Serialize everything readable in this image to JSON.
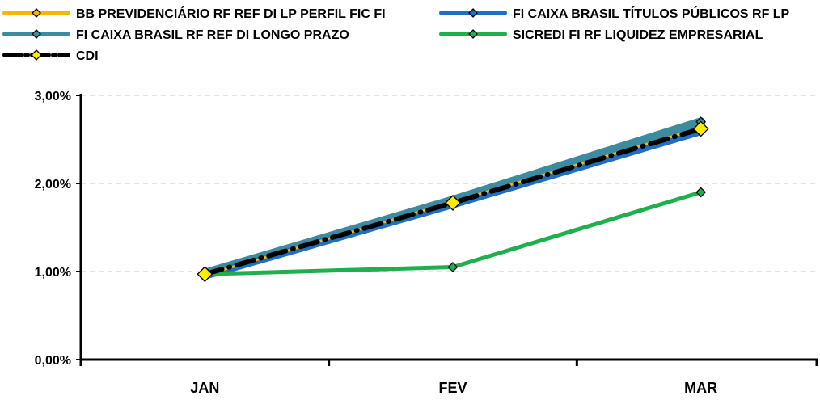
{
  "chart_data": {
    "type": "line",
    "categories": [
      "JAN",
      "FEV",
      "MAR"
    ],
    "ylim": [
      0,
      3
    ],
    "y_ticks": [
      "0,00%",
      "1,00%",
      "2,00%",
      "3,00%"
    ],
    "y_tick_values": [
      0,
      1,
      2,
      3
    ],
    "grid": "horizontal dashed",
    "legend_position": "top",
    "series": [
      {
        "name": "BB PREVIDENCIÁRIO RF REF DI LP PERFIL FIC FI",
        "values": [
          0.96,
          1.79,
          2.63
        ],
        "color": "#f5b800",
        "marker_color": "#f5b800"
      },
      {
        "name": "FI CAIXA BRASIL TÍTULOS PÚBLICOS RF LP",
        "values": [
          0.95,
          1.76,
          2.59
        ],
        "color": "#1f6fc3",
        "marker_color": "#1f6fc3"
      },
      {
        "name": "FI CAIXA BRASIL RF REF DI LONGO PRAZO",
        "values": [
          0.98,
          1.81,
          2.7
        ],
        "color": "#3d8ba0",
        "marker_color": "#3d8ba0"
      },
      {
        "name": "SICREDI FI RF LIQUIDEZ EMPRESARIAL",
        "values": [
          0.97,
          1.05,
          1.9
        ],
        "color": "#1fb04d",
        "marker_color": "#1fb04d"
      },
      {
        "name": "CDI",
        "values": [
          0.97,
          1.78,
          2.62
        ],
        "color": "#000000",
        "marker_color": "#ffeb00"
      }
    ]
  }
}
